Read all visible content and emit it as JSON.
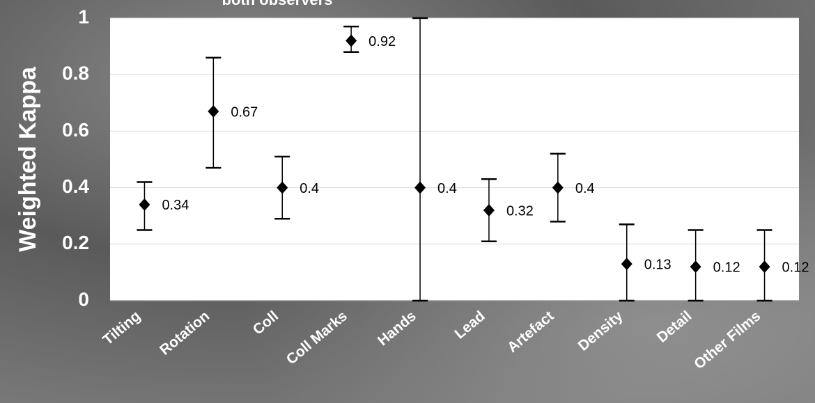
{
  "chart_data": {
    "type": "errorbar",
    "title": "both observers",
    "y_label": "Weighted Kappa",
    "categories": [
      "Tilting",
      "Rotation",
      "Coll",
      "Coll Marks",
      "Hands",
      "Lead",
      "Artefact",
      "Density",
      "Detail",
      "Other Films"
    ],
    "values": [
      0.34,
      0.67,
      0.4,
      0.92,
      0.4,
      0.32,
      0.4,
      0.13,
      0.12,
      0.12
    ],
    "lower": [
      0.25,
      0.47,
      0.29,
      0.88,
      0,
      0.21,
      0.28,
      0,
      0,
      0
    ],
    "upper": [
      0.42,
      0.86,
      0.51,
      0.97,
      1,
      0.43,
      0.52,
      0.27,
      0.25,
      0.25
    ],
    "color": "#000000",
    "ylim": [
      0,
      1
    ],
    "yticks": [
      0,
      0.2,
      0.4,
      0.6,
      0.8,
      1
    ],
    "grid": true
  }
}
